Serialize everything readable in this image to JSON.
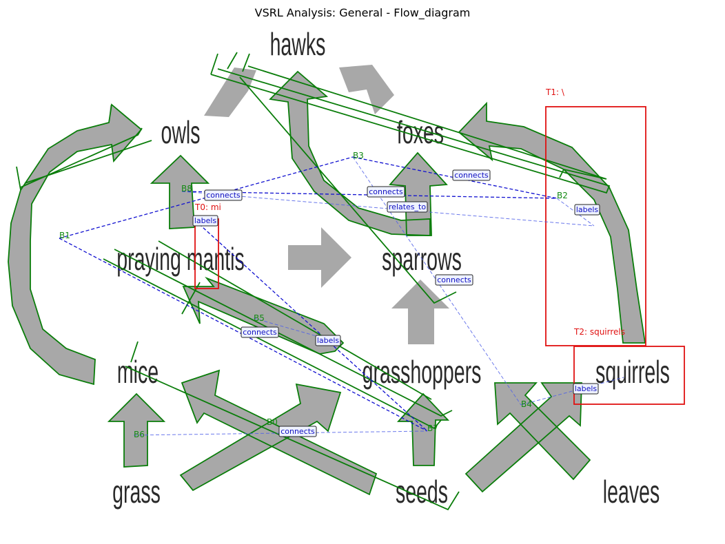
{
  "title": "VSRL Analysis: General - Flow_diagram",
  "words": [
    {
      "id": "hawks",
      "text": "hawks"
    },
    {
      "id": "owls",
      "text": "owls"
    },
    {
      "id": "foxes",
      "text": "foxes"
    },
    {
      "id": "praying_mantis",
      "text": "praying mantis"
    },
    {
      "id": "sparrows",
      "text": "sparrows"
    },
    {
      "id": "mice",
      "text": "mice"
    },
    {
      "id": "grasshoppers",
      "text": "grasshoppers"
    },
    {
      "id": "squirrels",
      "text": "squirrels"
    },
    {
      "id": "grass",
      "text": "grass"
    },
    {
      "id": "seeds",
      "text": "seeds"
    },
    {
      "id": "leaves",
      "text": "leaves"
    }
  ],
  "blob_labels": [
    {
      "id": "B0",
      "text": "B0"
    },
    {
      "id": "B1",
      "text": "B1"
    },
    {
      "id": "B2",
      "text": "B2"
    },
    {
      "id": "B3",
      "text": "B3"
    },
    {
      "id": "B4",
      "text": "B4"
    },
    {
      "id": "B5",
      "text": "B5"
    },
    {
      "id": "B6",
      "text": "B6"
    },
    {
      "id": "B7",
      "text": "B7"
    },
    {
      "id": "B8",
      "text": "B8"
    }
  ],
  "text_labels": [
    {
      "id": "T0",
      "text": "T0: mi"
    },
    {
      "id": "T1",
      "text": "T1: \\"
    },
    {
      "id": "T2",
      "text": "T2: squirrels"
    }
  ],
  "relations": [
    {
      "id": "r1",
      "text": "connects",
      "strength": "strong"
    },
    {
      "id": "r2",
      "text": "connects",
      "strength": "strong"
    },
    {
      "id": "r3",
      "text": "labels",
      "strength": "strong"
    },
    {
      "id": "r4",
      "text": "connects",
      "strength": "strong"
    },
    {
      "id": "r5",
      "text": "labels",
      "strength": "strong"
    },
    {
      "id": "r6",
      "text": "connects",
      "strength": "weak"
    },
    {
      "id": "r7",
      "text": "relates_to",
      "strength": "weak"
    },
    {
      "id": "r8",
      "text": "labels",
      "strength": "weak"
    },
    {
      "id": "r9",
      "text": "connects",
      "strength": "weak"
    },
    {
      "id": "r10",
      "text": "labels",
      "strength": "weak"
    },
    {
      "id": "r11",
      "text": "connects",
      "strength": "weak"
    }
  ],
  "colors": {
    "blob_outline": "#0a7d0a",
    "text_box": "#e01010",
    "relation_strong": "#1010d0",
    "relation_weak": "#5060e8",
    "arrow_fill": "#a8a8a8"
  }
}
